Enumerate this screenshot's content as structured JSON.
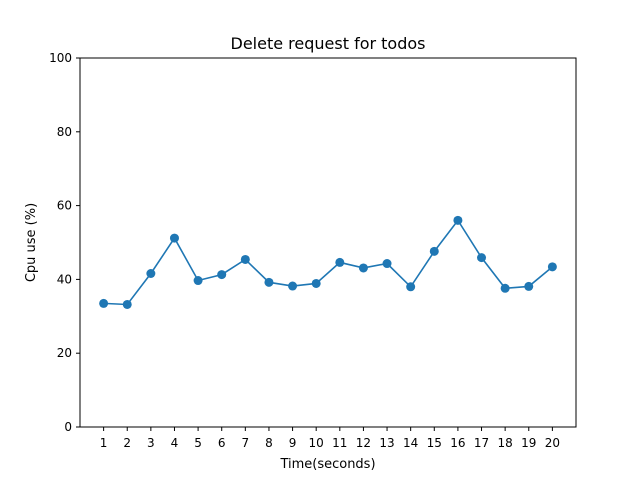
{
  "chart_data": {
    "type": "line",
    "title": "Delete request for todos",
    "xlabel": "Time(seconds)",
    "ylabel": "Cpu use (%)",
    "x": [
      1,
      2,
      3,
      4,
      5,
      6,
      7,
      8,
      9,
      10,
      11,
      12,
      13,
      14,
      15,
      16,
      17,
      18,
      19,
      20
    ],
    "series": [
      {
        "values": [
          33.5,
          33.2,
          41.6,
          51.2,
          39.7,
          41.3,
          45.4,
          39.2,
          38.2,
          38.9,
          44.6,
          43.1,
          44.3,
          38.0,
          47.6,
          56.0,
          45.9,
          37.6,
          38.1,
          43.4
        ]
      }
    ],
    "xlim": [
      0,
      21
    ],
    "ylim": [
      0,
      100
    ],
    "yticks": [
      0,
      20,
      40,
      60,
      80,
      100
    ],
    "grid": false,
    "colors": {
      "series": "#1f77b4",
      "axis": "#000000"
    }
  }
}
